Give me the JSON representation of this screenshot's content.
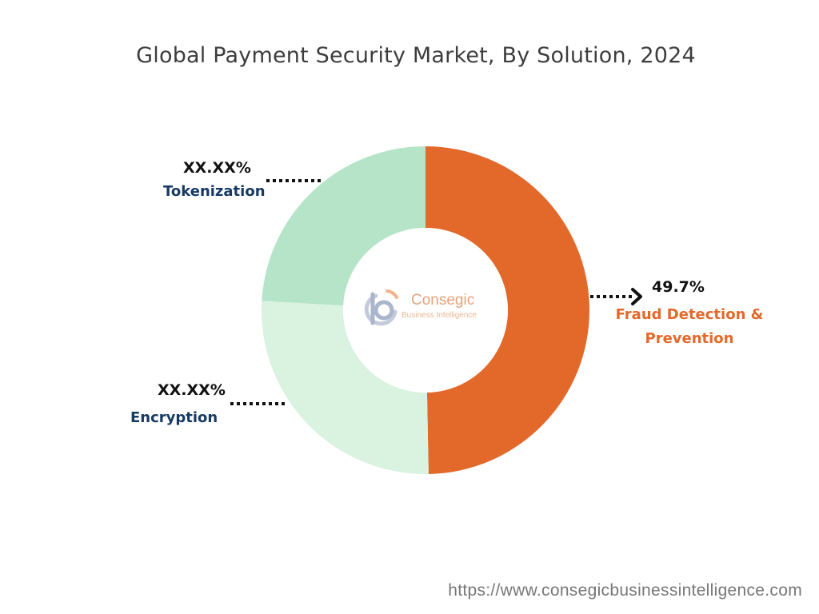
{
  "chart_data": {
    "type": "pie",
    "title": "Global Payment Security Market, By Solution, 2024",
    "slices": [
      {
        "label": "Fraud Detection & Prevention",
        "value": 49.7,
        "display": "49.7%",
        "color": "#e2692a",
        "label_color": "#e2692a"
      },
      {
        "label": "Encryption",
        "value": 26.2,
        "display": "XX.XX%",
        "color": "#daf2e0",
        "label_color": "#173a63"
      },
      {
        "label": "Tokenization",
        "value": 24.1,
        "display": "XX.XX%",
        "color": "#b5e4c8",
        "label_color": "#173a63"
      }
    ],
    "legend": "none",
    "donut": true
  },
  "logo": {
    "name": "Consegic",
    "tagline": "Business Intelligence"
  },
  "source_url": "https://www.consegicbusinessintelligence.com"
}
